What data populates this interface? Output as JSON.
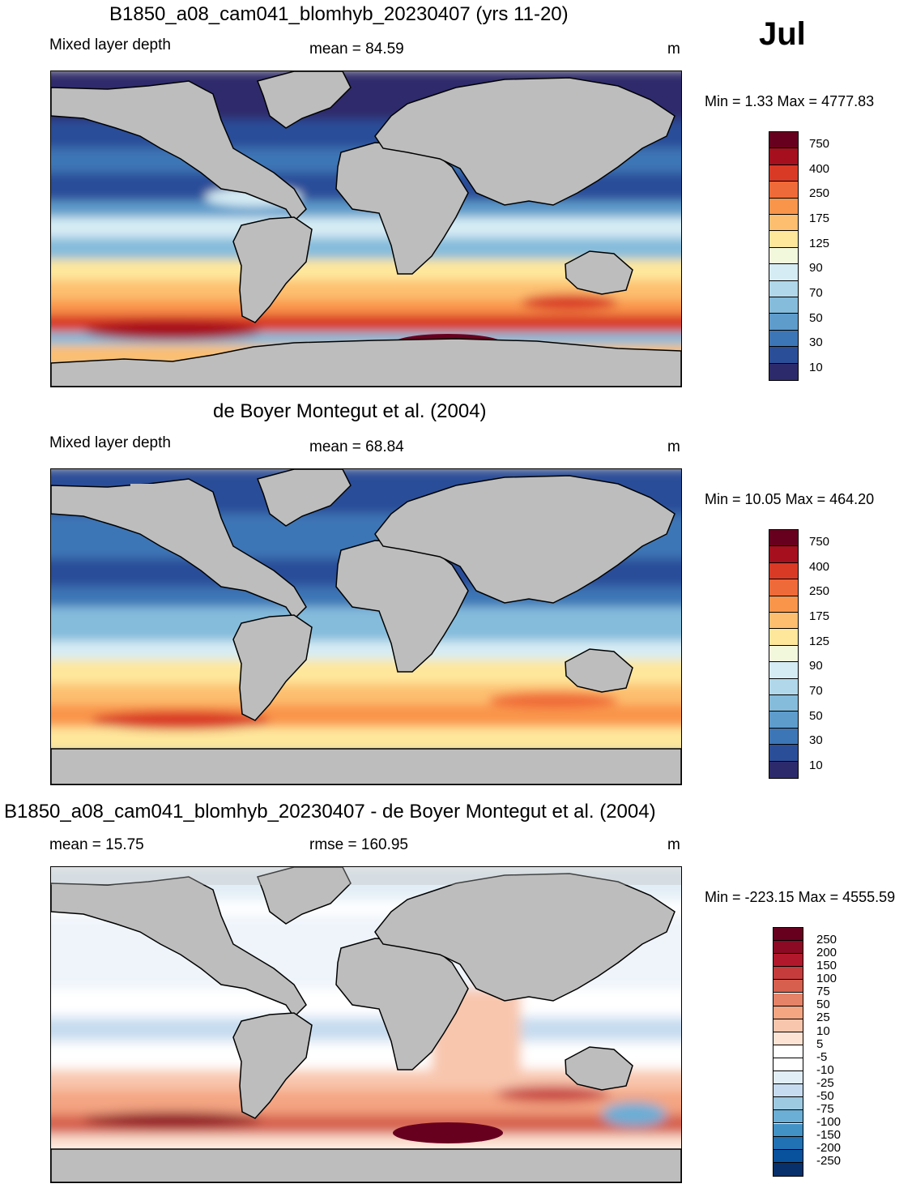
{
  "month": "Jul",
  "panels": [
    {
      "title": "B1850_a08_cam041_blomhyb_20230407 (yrs 11-20)",
      "left_label": "Mixed layer depth",
      "center_label": "mean =  84.59",
      "units": "m",
      "minmax": "Min =   1.33 Max = 4777.83"
    },
    {
      "title": "de Boyer Montegut et al. (2004)",
      "left_label": "Mixed layer depth",
      "center_label": "mean =  68.84",
      "units": "m",
      "minmax": "Min =  10.05 Max = 464.20"
    },
    {
      "title": "B1850_a08_cam041_blomhyb_20230407 - de Boyer Montegut et al. (2004)",
      "left_label": "mean =  15.75",
      "center_label": "rmse = 160.95",
      "units": "m",
      "minmax": "Min = -223.15 Max = 4555.59"
    }
  ],
  "colorbar_depth": {
    "labels": [
      "750",
      "400",
      "250",
      "175",
      "125",
      "90",
      "70",
      "50",
      "30",
      "10"
    ],
    "colors": [
      "#67001f",
      "#a50f1e",
      "#d93a26",
      "#ef6a39",
      "#f9954b",
      "#fdbf6f",
      "#fee79b",
      "#f2f8dc",
      "#d6ecf4",
      "#b0d8ea",
      "#85bcdb",
      "#5e9ccb",
      "#3d76b6",
      "#2b4e99",
      "#2d2a6c"
    ]
  },
  "colorbar_diff": {
    "labels": [
      "250",
      "200",
      "150",
      "100",
      "75",
      "50",
      "25",
      "10",
      "5",
      "-5",
      "-10",
      "-25",
      "-50",
      "-75",
      "-100",
      "-150",
      "-200",
      "-250"
    ],
    "colors": [
      "#67001f",
      "#8c0a24",
      "#b2182b",
      "#c63c3d",
      "#d6604d",
      "#e58368",
      "#f4a582",
      "#f8c6ad",
      "#fde3d3",
      "#ffffff",
      "#ffffff",
      "#e2eef6",
      "#c6dbef",
      "#9ecae1",
      "#6baed6",
      "#4292c6",
      "#2171b5",
      "#08519c",
      "#08306b"
    ]
  }
}
